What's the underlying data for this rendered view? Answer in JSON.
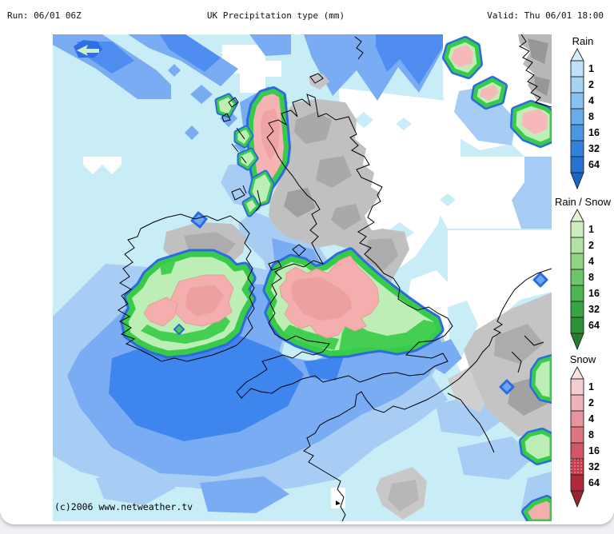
{
  "header": {
    "run_label": "Run: 06/01 06Z",
    "title": "UK Precipitation type (mm)",
    "valid_label": "Valid: Thu 06/01 18:00"
  },
  "map": {
    "copyright": "(c)2006 www.netweather.tv",
    "description": "UK precipitation type forecast map"
  },
  "legends": [
    {
      "id": "rain",
      "title": "Rain",
      "values": [
        "1",
        "2",
        "4",
        "8",
        "16",
        "32",
        "64"
      ],
      "tip_color": "#d6ecfb",
      "colors": [
        "#bfe1f8",
        "#a4d3f4",
        "#87c1ef",
        "#68ace9",
        "#4b96e2",
        "#3282da",
        "#2673d2"
      ],
      "bottom_color": "#1b63c8",
      "dotted_segments": []
    },
    {
      "id": "rain-snow",
      "title": "Rain / Snow",
      "values": [
        "1",
        "2",
        "4",
        "8",
        "16",
        "32",
        "64"
      ],
      "tip_color": "#e4f5da",
      "colors": [
        "#cdecbf",
        "#b0e3a2",
        "#8fd584",
        "#6cc668",
        "#4cb550",
        "#38a344",
        "#2d9039"
      ],
      "bottom_color": "#237e2e",
      "dotted_segments": []
    },
    {
      "id": "snow",
      "title": "Snow",
      "values": [
        "1",
        "2",
        "4",
        "8",
        "16",
        "32",
        "64"
      ],
      "tip_color": "#fae3e5",
      "colors": [
        "#f5cdd1",
        "#efb2b9",
        "#e7949e",
        "#dd7682",
        "#d25766",
        "#c43c4d",
        "#b12a3c"
      ],
      "bottom_color": "#9c2130",
      "dotted_segments": [
        5
      ]
    }
  ],
  "palette": {
    "sea_trace": "#c9edf6",
    "rain_light": "#a8cdf5",
    "rain_medium": "#79acf3",
    "rain_dark": "#3f85ee",
    "cell_ring_blue": "#2b6ae0",
    "cell_green_bright": "#3ccb4c",
    "cell_green_pale": "#bdeeb5",
    "cell_snow_pink": "#f4aeae",
    "terrain_grey": "#c0c0c0",
    "no_precip": "#ffffff"
  }
}
